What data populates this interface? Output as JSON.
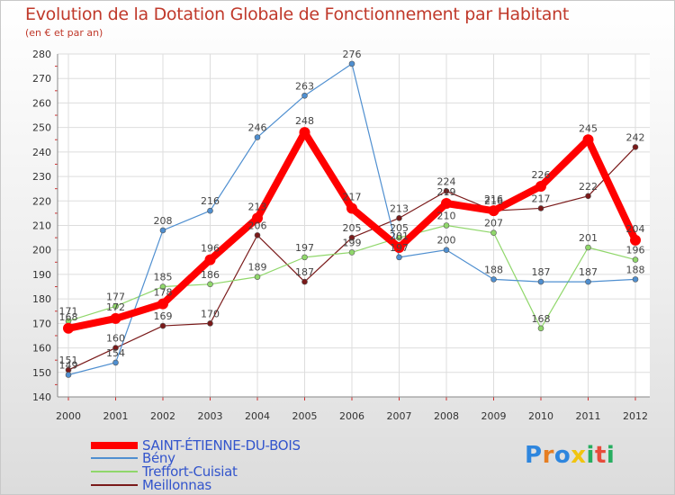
{
  "chart_data": {
    "type": "line",
    "title": "Evolution de la Dotation Globale de Fonctionnement par Habitant",
    "subtitle": "(en € et par an)",
    "xlabel": "",
    "ylabel": "",
    "categories": [
      "2000",
      "2001",
      "2002",
      "2003",
      "2004",
      "2005",
      "2006",
      "2007",
      "2008",
      "2009",
      "2010",
      "2011",
      "2012"
    ],
    "y_ticks": [
      "140",
      "150",
      "160",
      "170",
      "180",
      "190",
      "200",
      "210",
      "220",
      "230",
      "240",
      "250",
      "260",
      "270",
      "280"
    ],
    "ylim": [
      140,
      280
    ],
    "grid": true,
    "legend_position": "bottom-left",
    "series": [
      {
        "name": "SAINT-ÉTIENNE-DU-BOIS",
        "color": "#ff0000",
        "values": [
          168,
          172,
          178,
          196,
          213,
          248,
          217,
          201,
          219,
          216,
          226,
          245,
          204
        ]
      },
      {
        "name": "Bény",
        "color": "#4f8fd0",
        "values": [
          149,
          154,
          208,
          216,
          246,
          263,
          276,
          197,
          200,
          188,
          187,
          187,
          188
        ]
      },
      {
        "name": "Treffort-Cuisiat",
        "color": "#90d76b",
        "values": [
          171,
          177,
          185,
          186,
          189,
          197,
          199,
          205,
          210,
          207,
          168,
          201,
          196
        ]
      },
      {
        "name": "Meillonnas",
        "color": "#7a1a1a",
        "values": [
          151,
          160,
          169,
          170,
          206,
          187,
          205,
          213,
          224,
          216,
          217,
          222,
          242
        ]
      }
    ]
  },
  "logo": {
    "text": "Proxiti",
    "letters": [
      "P",
      "r",
      "o",
      "x",
      "i",
      "t",
      "i"
    ],
    "colors": [
      "#2e86de",
      "#e67e22",
      "#2e86de",
      "#f1c40f",
      "#27ae60",
      "#e74c3c",
      "#27ae60"
    ]
  }
}
